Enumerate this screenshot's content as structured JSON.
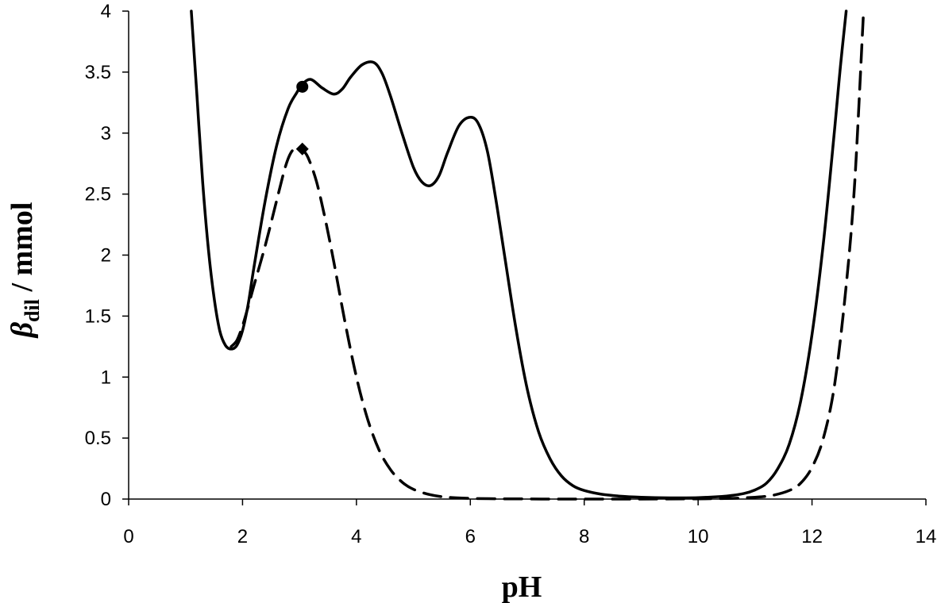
{
  "chart_data": {
    "type": "line",
    "xlabel": "pH",
    "ylabel": {
      "symbol": "β",
      "subscript": "dil",
      "unit": " / mmol"
    },
    "xlim": [
      0,
      14
    ],
    "ylim": [
      0,
      4
    ],
    "xticks": [
      0,
      2,
      4,
      6,
      8,
      10,
      12,
      14
    ],
    "yticks": [
      0,
      0.5,
      1,
      1.5,
      2,
      2.5,
      3,
      3.5,
      4
    ],
    "ytick_labels": [
      "0",
      "0.5",
      "1",
      "1.5",
      "2",
      "2.5",
      "3",
      "3.5",
      "4"
    ],
    "grid": false,
    "legend": "none",
    "series": [
      {
        "style": "solid",
        "color": "#000000",
        "x": [
          1.1,
          1.2,
          1.3,
          1.4,
          1.5,
          1.6,
          1.7,
          1.8,
          1.9,
          2.0,
          2.1,
          2.2,
          2.4,
          2.6,
          2.8,
          2.95,
          3.05,
          3.2,
          3.4,
          3.6,
          3.75,
          3.9,
          4.1,
          4.3,
          4.45,
          4.6,
          4.8,
          5.0,
          5.15,
          5.3,
          5.45,
          5.6,
          5.8,
          6.0,
          6.15,
          6.3,
          6.45,
          6.6,
          6.8,
          7.0,
          7.2,
          7.4,
          7.6,
          7.8,
          8.0,
          8.3,
          8.6,
          9.0,
          9.5,
          10.0,
          10.5,
          10.8,
          11.0,
          11.2,
          11.4,
          11.6,
          11.8,
          12.0,
          12.2,
          12.4,
          12.5,
          12.6
        ],
        "y": [
          4.0,
          3.3,
          2.6,
          2.05,
          1.65,
          1.38,
          1.26,
          1.23,
          1.26,
          1.38,
          1.6,
          1.9,
          2.45,
          2.9,
          3.2,
          3.33,
          3.4,
          3.44,
          3.37,
          3.32,
          3.36,
          3.46,
          3.56,
          3.58,
          3.49,
          3.3,
          3.0,
          2.72,
          2.6,
          2.57,
          2.65,
          2.84,
          3.06,
          3.13,
          3.07,
          2.85,
          2.45,
          2.0,
          1.4,
          0.9,
          0.55,
          0.33,
          0.19,
          0.11,
          0.07,
          0.04,
          0.025,
          0.015,
          0.01,
          0.012,
          0.025,
          0.045,
          0.075,
          0.13,
          0.25,
          0.45,
          0.8,
          1.35,
          2.1,
          3.05,
          3.55,
          4.0
        ]
      },
      {
        "style": "dashed",
        "color": "#000000",
        "x": [
          1.8,
          1.9,
          2.0,
          2.1,
          2.2,
          2.4,
          2.6,
          2.75,
          2.85,
          2.95,
          3.05,
          3.15,
          3.3,
          3.45,
          3.6,
          3.8,
          4.0,
          4.2,
          4.4,
          4.6,
          4.8,
          5.0,
          5.3,
          5.6,
          6.0,
          6.5,
          7.0,
          7.5,
          8.0,
          9.0,
          10.0,
          10.6,
          11.0,
          11.3,
          11.6,
          11.8,
          12.0,
          12.2,
          12.4,
          12.6,
          12.75,
          12.9
        ],
        "y": [
          1.25,
          1.3,
          1.42,
          1.58,
          1.75,
          2.08,
          2.45,
          2.72,
          2.84,
          2.88,
          2.86,
          2.8,
          2.6,
          2.3,
          1.95,
          1.45,
          1.0,
          0.65,
          0.4,
          0.24,
          0.14,
          0.08,
          0.035,
          0.015,
          0.006,
          0.002,
          0.001,
          0.0,
          0.0,
          0.0,
          0.002,
          0.006,
          0.015,
          0.03,
          0.07,
          0.13,
          0.26,
          0.5,
          0.95,
          1.75,
          2.6,
          3.95
        ]
      }
    ],
    "markers": [
      {
        "shape": "circle",
        "x": 3.05,
        "y": 3.38
      },
      {
        "shape": "diamond",
        "x": 3.05,
        "y": 2.87
      }
    ]
  }
}
